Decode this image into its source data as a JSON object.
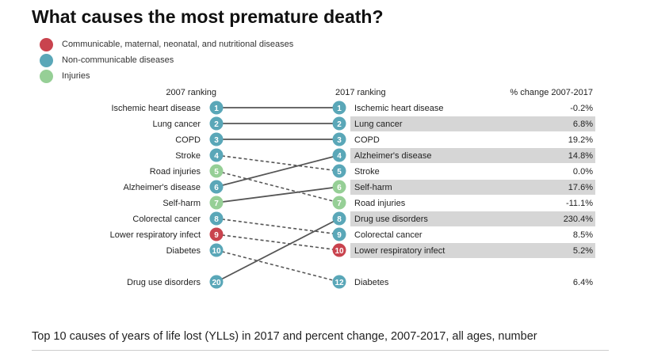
{
  "title": "What causes the most premature death?",
  "legend": [
    {
      "label": "Communicable, maternal, neonatal, and nutritional diseases",
      "color": "#c9434e"
    },
    {
      "label": "Non-communicable diseases",
      "color": "#5aa7b8"
    },
    {
      "label": "Injuries",
      "color": "#96cf96"
    }
  ],
  "footer": {
    "caption": "Top 10 causes of years of life lost (YLLs) in 2017 and percent change, 2007-2017, all ages, number"
  },
  "chart_data": {
    "type": "slope",
    "title": "What causes the most premature death?",
    "column_headers": {
      "left": "2007 ranking",
      "right": "2017 ranking",
      "change": "% change 2007-2017"
    },
    "categories": {
      "communicable": "#c9434e",
      "noncommunicable": "#5aa7b8",
      "injuries": "#96cf96"
    },
    "left": [
      {
        "name": "Ischemic heart disease",
        "rank": 1,
        "category": "noncommunicable"
      },
      {
        "name": "Lung cancer",
        "rank": 2,
        "category": "noncommunicable"
      },
      {
        "name": "COPD",
        "rank": 3,
        "category": "noncommunicable"
      },
      {
        "name": "Stroke",
        "rank": 4,
        "category": "noncommunicable"
      },
      {
        "name": "Road injuries",
        "rank": 5,
        "category": "injuries"
      },
      {
        "name": "Alzheimer's disease",
        "rank": 6,
        "category": "noncommunicable"
      },
      {
        "name": "Self-harm",
        "rank": 7,
        "category": "injuries"
      },
      {
        "name": "Colorectal cancer",
        "rank": 8,
        "category": "noncommunicable"
      },
      {
        "name": "Lower respiratory infect",
        "rank": 9,
        "category": "communicable"
      },
      {
        "name": "Diabetes",
        "rank": 10,
        "category": "noncommunicable"
      },
      {
        "name": "Drug use disorders",
        "rank": 20,
        "category": "noncommunicable"
      }
    ],
    "right": [
      {
        "name": "Ischemic heart disease",
        "rank": 1,
        "category": "noncommunicable",
        "change": "-0.2%",
        "highlight": false
      },
      {
        "name": "Lung cancer",
        "rank": 2,
        "category": "noncommunicable",
        "change": "6.8%",
        "highlight": true
      },
      {
        "name": "COPD",
        "rank": 3,
        "category": "noncommunicable",
        "change": "19.2%",
        "highlight": false
      },
      {
        "name": "Alzheimer's disease",
        "rank": 4,
        "category": "noncommunicable",
        "change": "14.8%",
        "highlight": true
      },
      {
        "name": "Stroke",
        "rank": 5,
        "category": "noncommunicable",
        "change": "0.0%",
        "highlight": false
      },
      {
        "name": "Self-harm",
        "rank": 6,
        "category": "injuries",
        "change": "17.6%",
        "highlight": true
      },
      {
        "name": "Road injuries",
        "rank": 7,
        "category": "injuries",
        "change": "-11.1%",
        "highlight": false
      },
      {
        "name": "Drug use disorders",
        "rank": 8,
        "category": "noncommunicable",
        "change": "230.4%",
        "highlight": true
      },
      {
        "name": "Colorectal cancer",
        "rank": 9,
        "category": "noncommunicable",
        "change": "8.5%",
        "highlight": false
      },
      {
        "name": "Lower respiratory infect",
        "rank": 10,
        "category": "communicable",
        "change": "5.2%",
        "highlight": true
      },
      {
        "name": "Diabetes",
        "rank": 12,
        "category": "noncommunicable",
        "change": "6.4%",
        "highlight": false
      }
    ],
    "lines": [
      {
        "from": 1,
        "to": 1,
        "style": "solid"
      },
      {
        "from": 2,
        "to": 2,
        "style": "solid"
      },
      {
        "from": 3,
        "to": 3,
        "style": "solid"
      },
      {
        "from": 4,
        "to": 5,
        "style": "dashed"
      },
      {
        "from": 5,
        "to": 7,
        "style": "dashed"
      },
      {
        "from": 6,
        "to": 4,
        "style": "solid"
      },
      {
        "from": 7,
        "to": 6,
        "style": "solid"
      },
      {
        "from": 8,
        "to": 9,
        "style": "dashed"
      },
      {
        "from": 9,
        "to": 10,
        "style": "dashed"
      },
      {
        "from": 10,
        "to": 12,
        "style": "dashed"
      },
      {
        "from": 20,
        "to": 8,
        "style": "solid"
      }
    ],
    "colors": {
      "highlight_band": "#d6d6d6",
      "line": "#555555"
    }
  }
}
